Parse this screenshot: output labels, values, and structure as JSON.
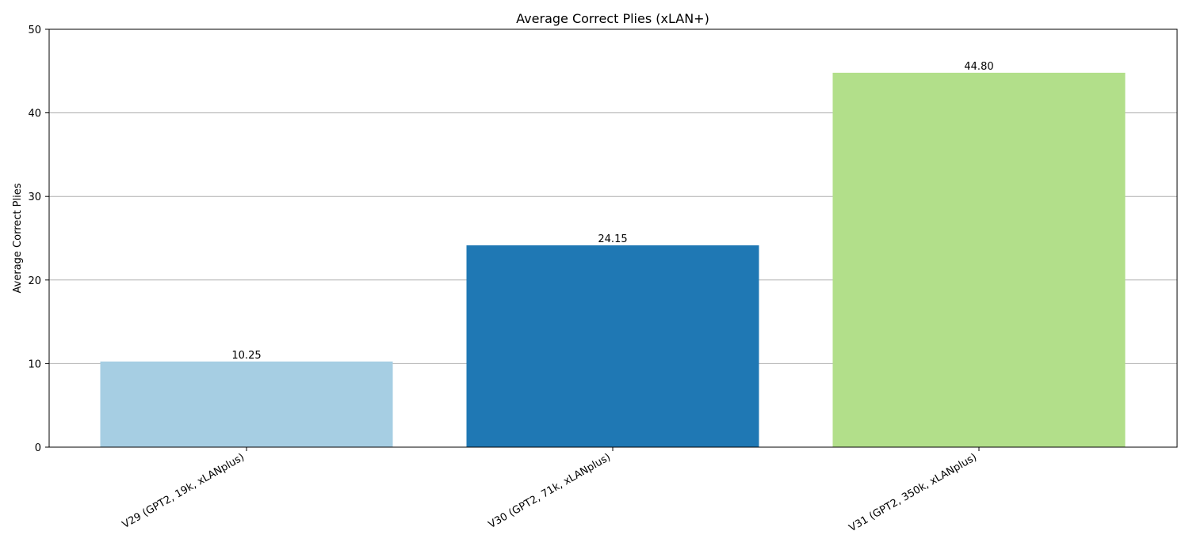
{
  "chart_data": {
    "type": "bar",
    "title": "Average Correct Plies (xLAN+)",
    "xlabel": "",
    "ylabel": "Average Correct Plies",
    "categories": [
      "V29 (GPT2, 19k, xLANplus)",
      "V30 (GPT2, 71k, xLANplus)",
      "V31 (GPT2, 350k, xLANplus)"
    ],
    "values": [
      10.25,
      24.15,
      44.8
    ],
    "value_labels": [
      "10.25",
      "24.15",
      "44.80"
    ],
    "colors": [
      "#a6cee3",
      "#1f78b4",
      "#b2df8a"
    ],
    "ylim": [
      0,
      50
    ],
    "yticks": [
      0,
      10,
      20,
      30,
      40,
      50
    ],
    "grid": "horizontal",
    "legend": "none"
  }
}
